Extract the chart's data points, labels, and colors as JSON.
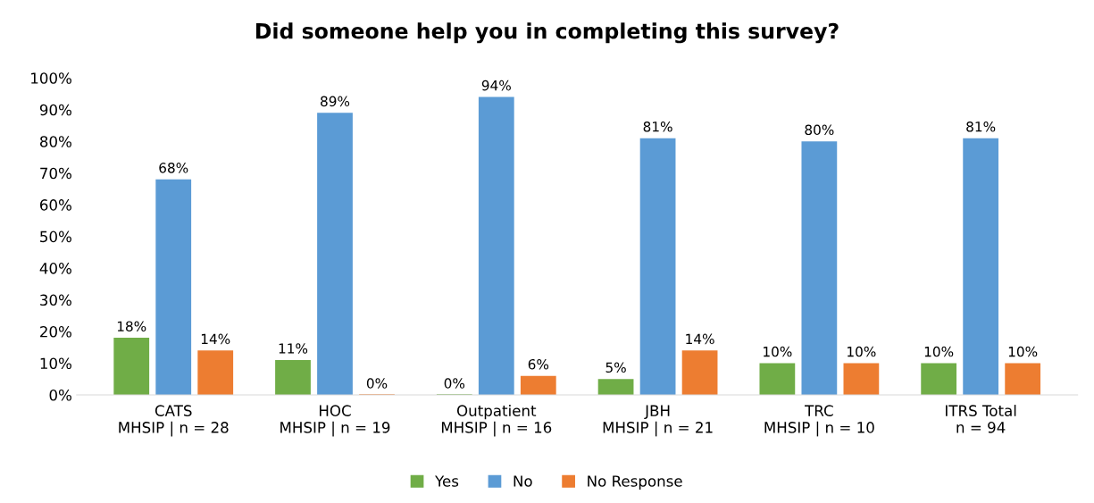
{
  "chart_data": {
    "type": "bar",
    "title": "Did someone help you in completing this survey?",
    "categories": [
      "CATS\nMHSIP | n = 28",
      "HOC\nMHSIP | n = 19",
      "Outpatient\nMHSIP | n = 16",
      "JBH\nMHSIP | n = 21",
      "TRC\nMHSIP | n = 10",
      "ITRS Total\nn = 94"
    ],
    "series": [
      {
        "name": "Yes",
        "color": "#70ad47",
        "values": [
          18,
          11,
          0,
          5,
          10,
          10
        ],
        "value_labels": [
          "18%",
          "11%",
          "0%",
          "5%",
          "10%",
          "10%"
        ]
      },
      {
        "name": "No",
        "color": "#5b9bd5",
        "values": [
          68,
          89,
          94,
          81,
          80,
          81
        ],
        "value_labels": [
          "68%",
          "89%",
          "94%",
          "81%",
          "80%",
          "81%"
        ]
      },
      {
        "name": "No Response",
        "color": "#ed7d31",
        "values": [
          14,
          0,
          6,
          14,
          10,
          10
        ],
        "value_labels": [
          "14%",
          "0%",
          "6%",
          "14%",
          "10%",
          "10%"
        ]
      }
    ],
    "ylim": [
      0,
      100
    ],
    "yticks": [
      {
        "value": 0,
        "label": "0%"
      },
      {
        "value": 10,
        "label": "10%"
      },
      {
        "value": 20,
        "label": "20%"
      },
      {
        "value": 30,
        "label": "30%"
      },
      {
        "value": 40,
        "label": "40%"
      },
      {
        "value": 50,
        "label": "50%"
      },
      {
        "value": 60,
        "label": "60%"
      },
      {
        "value": 70,
        "label": "70%"
      },
      {
        "value": 80,
        "label": "80%"
      },
      {
        "value": 90,
        "label": "90%"
      },
      {
        "value": 100,
        "label": "100%"
      }
    ],
    "grid": false,
    "legend": "bottom"
  }
}
